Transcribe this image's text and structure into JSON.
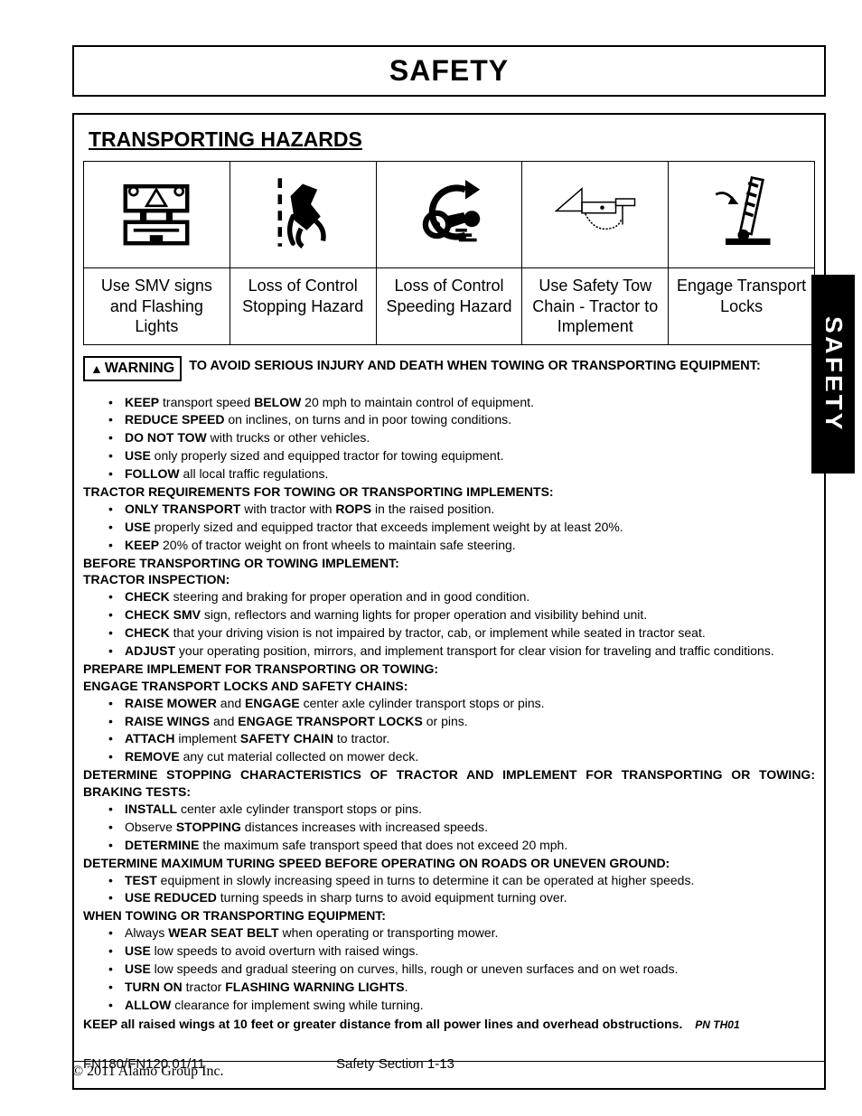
{
  "page_title": "SAFETY",
  "section_title": "TRANSPORTING HAZARDS",
  "side_tab": "SAFETY",
  "hazards": [
    {
      "caption": "Use SMV signs and Flashing Lights"
    },
    {
      "caption": "Loss of Control Stopping Hazard"
    },
    {
      "caption": "Loss of Control Speeding Hazard"
    },
    {
      "caption": "Use Safety Tow Chain - Tractor to Implement"
    },
    {
      "caption": "Engage Transport Locks"
    }
  ],
  "warning_label": "WARNING",
  "warning_text": "TO AVOID SERIOUS INJURY AND DEATH WHEN TOWING OR TRANSPORTING EQUIPMENT:",
  "bullets_a": [
    "<b>KEEP</b> transport speed <b>BELOW</b> 20 mph to maintain control of equipment.",
    "<b>REDUCE SPEED</b> on inclines, on turns and in poor towing conditions.",
    "<b>DO NOT TOW</b> with trucks or other vehicles.",
    "<b>USE</b> only properly sized and equipped tractor for towing equipment.",
    "<b>FOLLOW</b> all local traffic regulations."
  ],
  "hdr_b": "TRACTOR REQUIREMENTS FOR TOWING OR TRANSPORTING IMPLEMENTS:",
  "bullets_b": [
    "<b>ONLY TRANSPORT</b> with tractor with <b>ROPS</b> in the raised position.",
    "<b>USE</b> properly sized and equipped tractor that exceeds implement weight by at least 20%.",
    "<b>KEEP</b> 20% of tractor weight on front wheels to maintain safe steering."
  ],
  "hdr_c1": "BEFORE TRANSPORTING OR TOWING IMPLEMENT:",
  "hdr_c2": "TRACTOR INSPECTION:",
  "bullets_c": [
    "<b>CHECK</b> steering and braking for proper operation and in good condition.",
    "<b>CHECK SMV</b> sign, reflectors and warning lights for proper operation and visibility behind unit.",
    "<b>CHECK</b> that your driving vision is not impaired by tractor, cab, or implement while seated in tractor seat.",
    "<b>ADJUST</b> your operating position, mirrors, and implement transport for clear vision for traveling and traffic conditions."
  ],
  "hdr_d1": "PREPARE IMPLEMENT FOR TRANSPORTING OR TOWING:",
  "hdr_d2": "ENGAGE TRANSPORT LOCKS AND SAFETY CHAINS:",
  "bullets_d": [
    "<b>RAISE MOWER</b> and <b>ENGAGE</b> center axle cylinder transport stops or pins.",
    "<b>RAISE WINGS</b> and <b>ENGAGE TRANSPORT LOCKS</b> or pins.",
    "<b>ATTACH</b> implement <b>SAFETY CHAIN</b> to tractor.",
    "<b>REMOVE</b> any cut material collected on mower deck."
  ],
  "hdr_e1": "DETERMINE STOPPING CHARACTERISTICS OF TRACTOR AND IMPLEMENT FOR TRANSPORTING OR TOWING:",
  "hdr_e2": "BRAKING TESTS:",
  "bullets_e": [
    "<b>INSTALL</b> center axle cylinder transport stops or pins.",
    "Observe <b>STOPPING</b> distances increases with increased speeds.",
    "<b>DETERMINE</b> the maximum safe transport speed that does not exceed 20 mph."
  ],
  "hdr_f": "DETERMINE MAXIMUM TURING SPEED BEFORE OPERATING ON ROADS OR UNEVEN GROUND:",
  "bullets_f": [
    "<b>TEST</b> equipment in slowly increasing speed in turns to determine it can be operated at higher speeds.",
    "<b>USE REDUCED</b> turning speeds in sharp turns to avoid equipment turning over."
  ],
  "hdr_g": "WHEN TOWING OR TRANSPORTING EQUIPMENT:",
  "bullets_g": [
    "Always <b>WEAR SEAT BELT</b> when operating or transporting mower.",
    "<b>USE</b> low speeds to avoid overturn with raised wings.",
    "<b>USE</b>  low speeds and gradual steering on curves, hills, rough or uneven surfaces and on wet roads.",
    "<b>TURN ON</b> tractor <b>FLASHING WARNING LIGHTS</b>.",
    "<b>ALLOW</b> clearance for implement swing while turning."
  ],
  "final_line": "KEEP all raised wings at 10 feet or greater distance from all power lines and overhead obstructions.",
  "pn": "PN TH01",
  "footer_model": "FN180/FN120   01/11",
  "footer_section": "Safety Section 1-13",
  "copyright": "© 2011 Alamo Group Inc."
}
